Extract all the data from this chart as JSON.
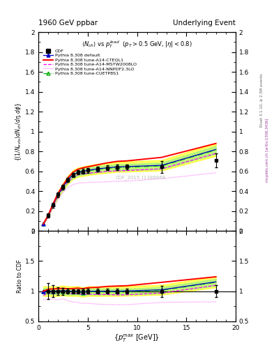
{
  "title_left": "1960 GeV ppbar",
  "title_right": "Underlying Event",
  "subtitle": "<N_{ch}> vs p_{T}^{lead} (p_{T} > 0.5 GeV, |#eta| < 0.8)",
  "ylabel_main": "{(1/N_{events}) dN_{ch}/d#eta, d#phi}",
  "ylabel_ratio": "Ratio to CDF",
  "xlabel": "{p_{T}^{max} [GeV]}",
  "watermark": "CDF_2015_I1388868",
  "ylim_main": [
    0.0,
    2.0
  ],
  "ylim_ratio": [
    0.5,
    2.0
  ],
  "xlim": [
    0,
    20
  ],
  "cdf_x": [
    1.0,
    1.5,
    2.0,
    2.5,
    3.0,
    3.5,
    4.0,
    4.5,
    5.0,
    6.0,
    7.0,
    8.0,
    9.0,
    12.5,
    18.0
  ],
  "cdf_y": [
    0.155,
    0.26,
    0.365,
    0.44,
    0.515,
    0.565,
    0.59,
    0.6,
    0.61,
    0.625,
    0.635,
    0.64,
    0.645,
    0.645,
    0.71
  ],
  "cdf_yerr": [
    0.02,
    0.025,
    0.025,
    0.025,
    0.02,
    0.02,
    0.02,
    0.025,
    0.025,
    0.025,
    0.025,
    0.025,
    0.025,
    0.06,
    0.07
  ],
  "pythia_default_x": [
    0.5,
    1.0,
    1.5,
    2.0,
    2.5,
    3.0,
    3.5,
    4.0,
    4.5,
    5.0,
    6.0,
    7.0,
    8.0,
    9.0,
    12.5,
    18.0
  ],
  "pythia_default_y": [
    0.07,
    0.155,
    0.265,
    0.365,
    0.445,
    0.515,
    0.565,
    0.59,
    0.6,
    0.61,
    0.625,
    0.635,
    0.645,
    0.648,
    0.66,
    0.82
  ],
  "cteql1_x": [
    0.5,
    1.0,
    1.5,
    2.0,
    2.5,
    3.0,
    3.5,
    4.0,
    4.5,
    5.0,
    6.0,
    7.0,
    8.0,
    9.0,
    12.5,
    18.0
  ],
  "cteql1_y": [
    0.07,
    0.16,
    0.275,
    0.38,
    0.46,
    0.535,
    0.59,
    0.62,
    0.635,
    0.645,
    0.665,
    0.685,
    0.7,
    0.705,
    0.74,
    0.88
  ],
  "mstw_x": [
    0.5,
    1.0,
    1.5,
    2.0,
    2.5,
    3.0,
    3.5,
    4.0,
    4.5,
    5.0,
    6.0,
    7.0,
    8.0,
    9.0,
    12.5,
    18.0
  ],
  "mstw_y": [
    0.065,
    0.15,
    0.255,
    0.355,
    0.43,
    0.495,
    0.54,
    0.565,
    0.575,
    0.58,
    0.59,
    0.6,
    0.605,
    0.608,
    0.625,
    0.78
  ],
  "nnpdf_x": [
    0.5,
    1.0,
    1.5,
    2.0,
    2.5,
    3.0,
    3.5,
    4.0,
    4.5,
    5.0,
    6.0,
    7.0,
    8.0,
    9.0,
    12.5,
    18.0
  ],
  "nnpdf_y": [
    0.06,
    0.135,
    0.23,
    0.315,
    0.385,
    0.435,
    0.465,
    0.48,
    0.485,
    0.488,
    0.49,
    0.495,
    0.5,
    0.502,
    0.525,
    0.585
  ],
  "cuetp_x": [
    0.5,
    1.0,
    1.5,
    2.0,
    2.5,
    3.0,
    3.5,
    4.0,
    4.5,
    5.0,
    6.0,
    7.0,
    8.0,
    9.0,
    12.5,
    18.0
  ],
  "cuetp_y": [
    0.07,
    0.155,
    0.265,
    0.365,
    0.44,
    0.51,
    0.56,
    0.585,
    0.595,
    0.605,
    0.62,
    0.63,
    0.638,
    0.64,
    0.655,
    0.815
  ],
  "ratio_cteql1_y": [
    1.0,
    1.032,
    1.038,
    1.041,
    1.047,
    1.039,
    1.044,
    1.051,
    1.041,
    1.057,
    1.064,
    1.079,
    1.085,
    1.091,
    1.147,
    1.239
  ],
  "ratio_default_y": [
    1.0,
    1.0,
    1.0,
    1.0,
    1.012,
    1.0,
    1.0,
    1.0,
    0.984,
    1.0,
    1.0,
    1.0,
    1.0,
    1.005,
    1.023,
    1.155
  ],
  "ratio_mstw_y": [
    0.929,
    0.968,
    0.959,
    0.966,
    0.975,
    0.961,
    0.956,
    0.958,
    0.943,
    0.951,
    0.944,
    0.945,
    0.938,
    0.941,
    0.969,
    1.098
  ],
  "ratio_nnpdf_y": [
    0.857,
    0.871,
    0.868,
    0.857,
    0.874,
    0.843,
    0.822,
    0.814,
    0.795,
    0.8,
    0.784,
    0.78,
    0.776,
    0.777,
    0.814,
    0.824
  ],
  "ratio_cuetp_y": [
    1.0,
    1.0,
    1.0,
    1.0,
    1.0,
    0.99,
    0.991,
    0.992,
    0.975,
    0.992,
    0.992,
    0.992,
    0.99,
    0.991,
    1.016,
    1.148
  ],
  "ratio_cdf_x": [
    1.0,
    1.5,
    2.0,
    2.5,
    3.0,
    3.5,
    4.0,
    4.5,
    5.0,
    6.0,
    7.0,
    8.0,
    9.0,
    12.5,
    18.0
  ],
  "ratio_cdf_yerr": [
    0.13,
    0.096,
    0.068,
    0.057,
    0.039,
    0.035,
    0.034,
    0.042,
    0.041,
    0.04,
    0.039,
    0.039,
    0.039,
    0.093,
    0.099
  ],
  "color_cdf": "#000000",
  "color_default": "#0000cc",
  "color_cteql1": "#ff0000",
  "color_mstw": "#ff00ff",
  "color_nnpdf": "#ff88ff",
  "color_cuetp": "#00aa00"
}
